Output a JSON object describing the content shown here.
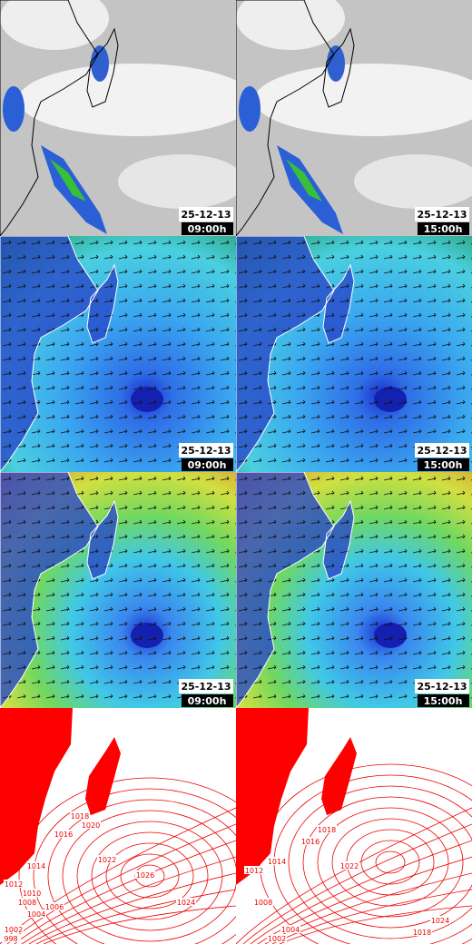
{
  "panels": [
    {
      "date": "25-12-13",
      "time": "09:00h"
    },
    {
      "date": "25-12-13",
      "time": "15:00h"
    },
    {
      "date": "25-12-13",
      "time": "09:00h"
    },
    {
      "date": "25-12-13",
      "time": "15:00h"
    },
    {
      "date": "25-12-13",
      "time": "09:00h"
    },
    {
      "date": "25-12-13",
      "time": "15:00h"
    },
    {
      "isobar_labels": [
        "1026",
        "1024",
        "1022",
        "1020",
        "1018",
        "1016",
        "1014",
        "1012",
        "1010",
        "1008",
        "1006",
        "1004",
        "1002",
        "998"
      ]
    },
    {
      "isobar_labels": [
        "1024",
        "1022",
        "1018",
        "1016",
        "1014",
        "1012",
        "1008",
        "1004",
        "1002",
        "1018"
      ]
    }
  ]
}
